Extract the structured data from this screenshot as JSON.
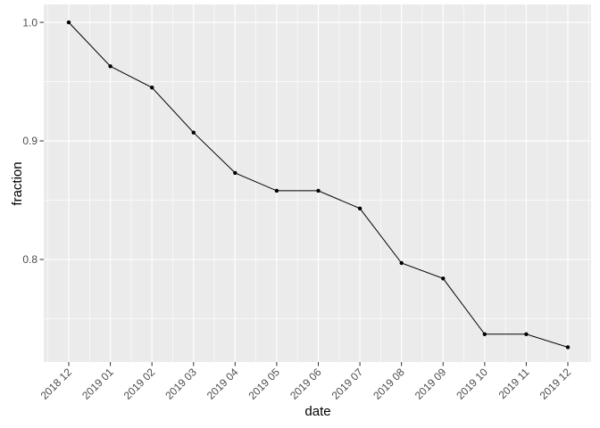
{
  "figure": {
    "background_color": "#ffffff"
  },
  "chart_data": {
    "type": "line",
    "title": "",
    "xlabel": "date",
    "ylabel": "fraction",
    "categories": [
      "2018 12",
      "2019 01",
      "2019 02",
      "2019 03",
      "2019 04",
      "2019 05",
      "2019 06",
      "2019 07",
      "2019 08",
      "2019 09",
      "2019 10",
      "2019 11",
      "2019 12"
    ],
    "series": [
      {
        "name": "fraction",
        "values": [
          1.0,
          0.963,
          0.945,
          0.907,
          0.873,
          0.858,
          0.858,
          0.843,
          0.797,
          0.784,
          0.737,
          0.737,
          0.726
        ]
      }
    ],
    "y_tick_values": [
      1.0,
      0.9,
      0.8
    ],
    "y_tick_labels": [
      "1.0",
      "0.9",
      "0.8"
    ],
    "y_minor_values": [
      0.95,
      0.85,
      0.75
    ],
    "ylim": [
      0.7135,
      1.0151
    ],
    "grid": "major-and-minor",
    "legend_position": "none",
    "marker": "point",
    "style": {
      "panel_background": "#EBEBEB",
      "grid_color": "#FFFFFF",
      "line_color": "#000000",
      "point_color": "#000000",
      "tick_mark_color": "#333333",
      "tick_label_color": "#4D4D4D",
      "axis_title_color": "#000000"
    }
  }
}
